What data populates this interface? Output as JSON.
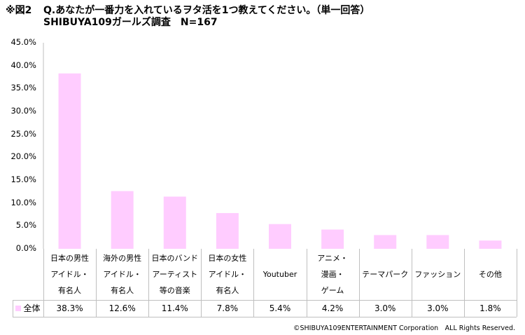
{
  "title": {
    "fig": "※図2",
    "question": "Q.あなたが一番力を入れているヲタ活を1つ教えてください。（単一回答）",
    "subtitle": "SHIBUYA109ガールズ調査　N=167"
  },
  "chart_data": {
    "type": "bar",
    "categories": [
      "日本の男性\nアイドル・\n有名人",
      "海外の男性\nアイドル・\n有名人",
      "日本のバンド\nアーティスト\n等の音楽",
      "日本の女性\nアイドル・\n有名人",
      "Youtuber",
      "アニメ・\n漫画・\nゲーム",
      "テーマパーク",
      "ファッション",
      "その他"
    ],
    "series": [
      {
        "name": "全体",
        "values": [
          38.3,
          12.6,
          11.4,
          7.8,
          5.4,
          4.2,
          3.0,
          3.0,
          1.8
        ],
        "labels": [
          "38.3%",
          "12.6%",
          "11.4%",
          "7.8%",
          "5.4%",
          "4.2%",
          "3.0%",
          "3.0%",
          "1.8%"
        ],
        "color": "#ffccff"
      }
    ],
    "yticks": [
      "0.0%",
      "5.0%",
      "10.0%",
      "15.0%",
      "20.0%",
      "25.0%",
      "30.0%",
      "35.0%",
      "40.0%",
      "45.0%"
    ],
    "ylim": [
      0,
      45
    ],
    "grid": false,
    "legend": "data-table"
  },
  "footer": "©SHIBUYA109ENTERTAINMENT Corporation　ALL Rights Reserved."
}
